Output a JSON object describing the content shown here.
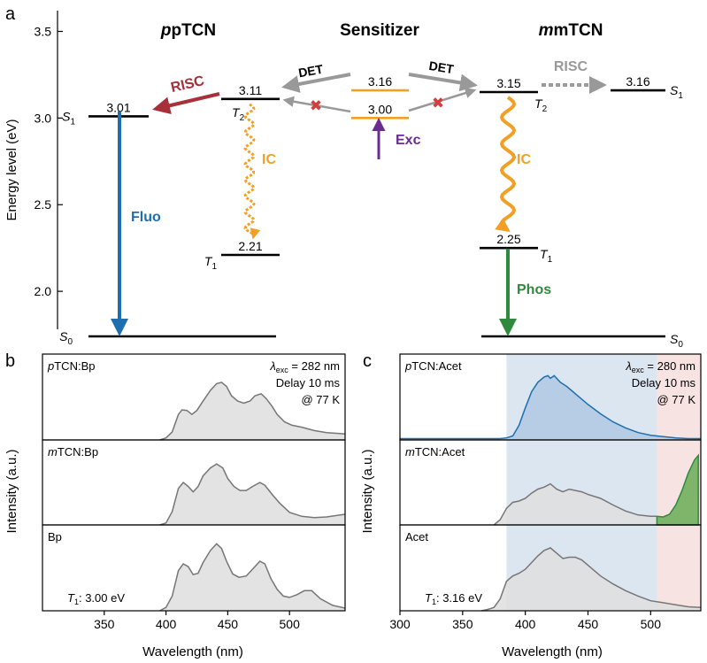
{
  "panel_labels": {
    "a": "a",
    "b": "b",
    "c": "c"
  },
  "colors": {
    "red": "#a8303a",
    "orange": "#f2a025",
    "gray": "#999999",
    "purple": "#6a2c91",
    "blue": "#1f6faf",
    "green": "#2f8a3e",
    "spectrum_gray": "#767676",
    "fill_gray": "#dedede",
    "blue_region": "#dce6f1",
    "pink_region": "#f8e3e3",
    "green_fill": "#7fb56a"
  },
  "chart_data": [
    {
      "type": "energy-level-diagram",
      "panel": "a",
      "ylabel": "Energy level (eV)",
      "ylim": [
        1.74,
        3.62
      ],
      "yticks": [
        "2.0",
        "2.5",
        "3.0",
        "3.5"
      ],
      "columns": {
        "left": "pTCN",
        "middle": "Sensitizer",
        "right": "mTCN"
      },
      "levels": [
        {
          "id": "pS1",
          "energy": 3.01,
          "value_label": "3.01",
          "state": "S",
          "sub": "1"
        },
        {
          "id": "pT2",
          "energy": 3.11,
          "value_label": "3.11",
          "state": "T",
          "sub": "2"
        },
        {
          "id": "pT1",
          "energy": 2.21,
          "value_label": "2.21",
          "state": "T",
          "sub": "1"
        },
        {
          "id": "sensT",
          "energy": 3.16,
          "value_label": "3.16"
        },
        {
          "id": "sensS",
          "energy": 3.0,
          "value_label": "3.00"
        },
        {
          "id": "mT2",
          "energy": 3.15,
          "value_label": "3.15",
          "state": "T",
          "sub": "2"
        },
        {
          "id": "mS1",
          "energy": 3.16,
          "value_label": "3.16",
          "state": "S",
          "sub": "1"
        },
        {
          "id": "mT1",
          "energy": 2.25,
          "value_label": "2.25",
          "state": "T",
          "sub": "1"
        },
        {
          "id": "pS0",
          "energy": 1.74,
          "state": "S",
          "sub": "0"
        },
        {
          "id": "mS0",
          "energy": 1.74,
          "state": "S",
          "sub": "0"
        }
      ],
      "transitions": {
        "risc_left": "RISC",
        "risc_right": "RISC",
        "det_left": "DET",
        "det_right": "DET",
        "ic_left": "IC",
        "ic_right": "IC",
        "exc": "Exc",
        "fluo": "Fluo",
        "phos": "Phos"
      }
    },
    {
      "type": "area",
      "panel": "b",
      "ylabel": "Intensity (a.u.)",
      "xlabel": "Wavelength (nm)",
      "xlim": [
        300,
        545
      ],
      "xticks": [
        350,
        400,
        450,
        500
      ],
      "annotation": {
        "lambda": "λ",
        "exc_sub": "exc",
        "exc_value": "= 282 nm",
        "delay": "Delay 10 ms",
        "temp": "@ 77 K"
      },
      "subplots": [
        {
          "name_italic": "p",
          "name_rest": "TCN:Bp",
          "x": [
            395,
            400,
            405,
            410,
            413,
            417,
            421,
            425,
            430,
            436,
            441,
            445,
            449,
            453,
            458,
            463,
            468,
            472,
            477,
            481,
            486,
            490,
            496,
            502,
            510,
            520,
            530,
            545
          ],
          "y": [
            0,
            0.03,
            0.12,
            0.38,
            0.45,
            0.44,
            0.38,
            0.44,
            0.58,
            0.74,
            0.84,
            0.86,
            0.8,
            0.66,
            0.58,
            0.55,
            0.58,
            0.66,
            0.69,
            0.62,
            0.5,
            0.38,
            0.27,
            0.22,
            0.19,
            0.14,
            0.11,
            0.09
          ]
        },
        {
          "name_italic": "m",
          "name_rest": "TCN:Bp",
          "x": [
            395,
            400,
            405,
            410,
            414,
            418,
            422,
            426,
            430,
            436,
            441,
            446,
            450,
            455,
            460,
            465,
            470,
            476,
            480,
            486,
            492,
            500,
            510,
            520,
            530,
            545
          ],
          "y": [
            0,
            0.03,
            0.2,
            0.55,
            0.64,
            0.58,
            0.5,
            0.58,
            0.74,
            0.86,
            0.92,
            0.86,
            0.7,
            0.58,
            0.52,
            0.52,
            0.58,
            0.64,
            0.6,
            0.46,
            0.33,
            0.19,
            0.13,
            0.11,
            0.12,
            0.16
          ]
        },
        {
          "name_italic": "",
          "name_rest": "Bp",
          "t1_label": "T",
          "t1_sub": "1",
          "t1_value": ": 3.00 eV",
          "x": [
            395,
            400,
            405,
            410,
            414,
            418,
            422,
            426,
            430,
            436,
            441,
            445,
            449,
            454,
            459,
            465,
            470,
            476,
            480,
            485,
            490,
            495,
            500,
            506,
            512,
            518,
            525,
            535,
            545
          ],
          "y": [
            0,
            0.05,
            0.22,
            0.6,
            0.7,
            0.66,
            0.54,
            0.56,
            0.72,
            0.9,
            1.0,
            0.93,
            0.74,
            0.55,
            0.5,
            0.52,
            0.62,
            0.74,
            0.7,
            0.48,
            0.32,
            0.22,
            0.2,
            0.24,
            0.3,
            0.3,
            0.18,
            0.08,
            0.04
          ]
        }
      ]
    },
    {
      "type": "area",
      "panel": "c",
      "ylabel": "Intensity (a.u.)",
      "xlabel": "Wavelength (nm)",
      "xlim": [
        300,
        540
      ],
      "xticks": [
        300,
        350,
        400,
        450,
        500
      ],
      "regions": [
        {
          "from": 385,
          "to": 505,
          "color": "blue"
        },
        {
          "from": 505,
          "to": 540,
          "color": "pink"
        }
      ],
      "annotation": {
        "lambda": "λ",
        "exc_sub": "exc",
        "exc_value": "= 280 nm",
        "delay": "Delay 10 ms",
        "temp": "@ 77 K"
      },
      "subplots": [
        {
          "name_italic": "p",
          "name_rest": "TCN:Acet",
          "style": "blue",
          "x": [
            300,
            360,
            380,
            385,
            390,
            395,
            400,
            405,
            410,
            415,
            418,
            420,
            423,
            428,
            433,
            438,
            443,
            450,
            460,
            470,
            480,
            490,
            500,
            510,
            520,
            530,
            540
          ],
          "y": [
            0.02,
            0.02,
            0.02,
            0.03,
            0.06,
            0.22,
            0.48,
            0.72,
            0.86,
            0.94,
            0.96,
            0.92,
            0.96,
            0.86,
            0.8,
            0.72,
            0.64,
            0.53,
            0.39,
            0.27,
            0.18,
            0.11,
            0.07,
            0.05,
            0.03,
            0.02,
            0.02
          ]
        },
        {
          "name_italic": "m",
          "name_rest": "TCN:Acet",
          "style": "gray",
          "x": [
            375,
            380,
            385,
            390,
            395,
            400,
            405,
            410,
            415,
            420,
            425,
            430,
            435,
            440,
            445,
            450,
            460,
            470,
            480,
            490,
            500,
            505
          ],
          "y": [
            0,
            0.08,
            0.25,
            0.34,
            0.36,
            0.4,
            0.48,
            0.54,
            0.57,
            0.62,
            0.54,
            0.5,
            0.54,
            0.52,
            0.5,
            0.46,
            0.4,
            0.3,
            0.21,
            0.15,
            0.13,
            0.13
          ],
          "phos_x": [
            505,
            510,
            515,
            520,
            525,
            530,
            535,
            538
          ],
          "phos_y": [
            0.13,
            0.12,
            0.16,
            0.3,
            0.52,
            0.78,
            0.98,
            1.05
          ]
        },
        {
          "name_italic": "",
          "name_rest": "Acet",
          "style": "gray",
          "t1_label": "T",
          "t1_sub": "1",
          "t1_value": ": 3.16 eV",
          "x": [
            365,
            370,
            375,
            380,
            385,
            390,
            395,
            400,
            405,
            410,
            415,
            420,
            425,
            430,
            435,
            440,
            445,
            450,
            460,
            470,
            480,
            490,
            500,
            510,
            520,
            530,
            540
          ],
          "y": [
            0,
            0.02,
            0.05,
            0.18,
            0.44,
            0.52,
            0.56,
            0.62,
            0.72,
            0.82,
            0.9,
            0.94,
            0.86,
            0.78,
            0.8,
            0.8,
            0.76,
            0.68,
            0.52,
            0.4,
            0.3,
            0.22,
            0.15,
            0.12,
            0.09,
            0.06,
            0.05
          ]
        }
      ]
    }
  ]
}
